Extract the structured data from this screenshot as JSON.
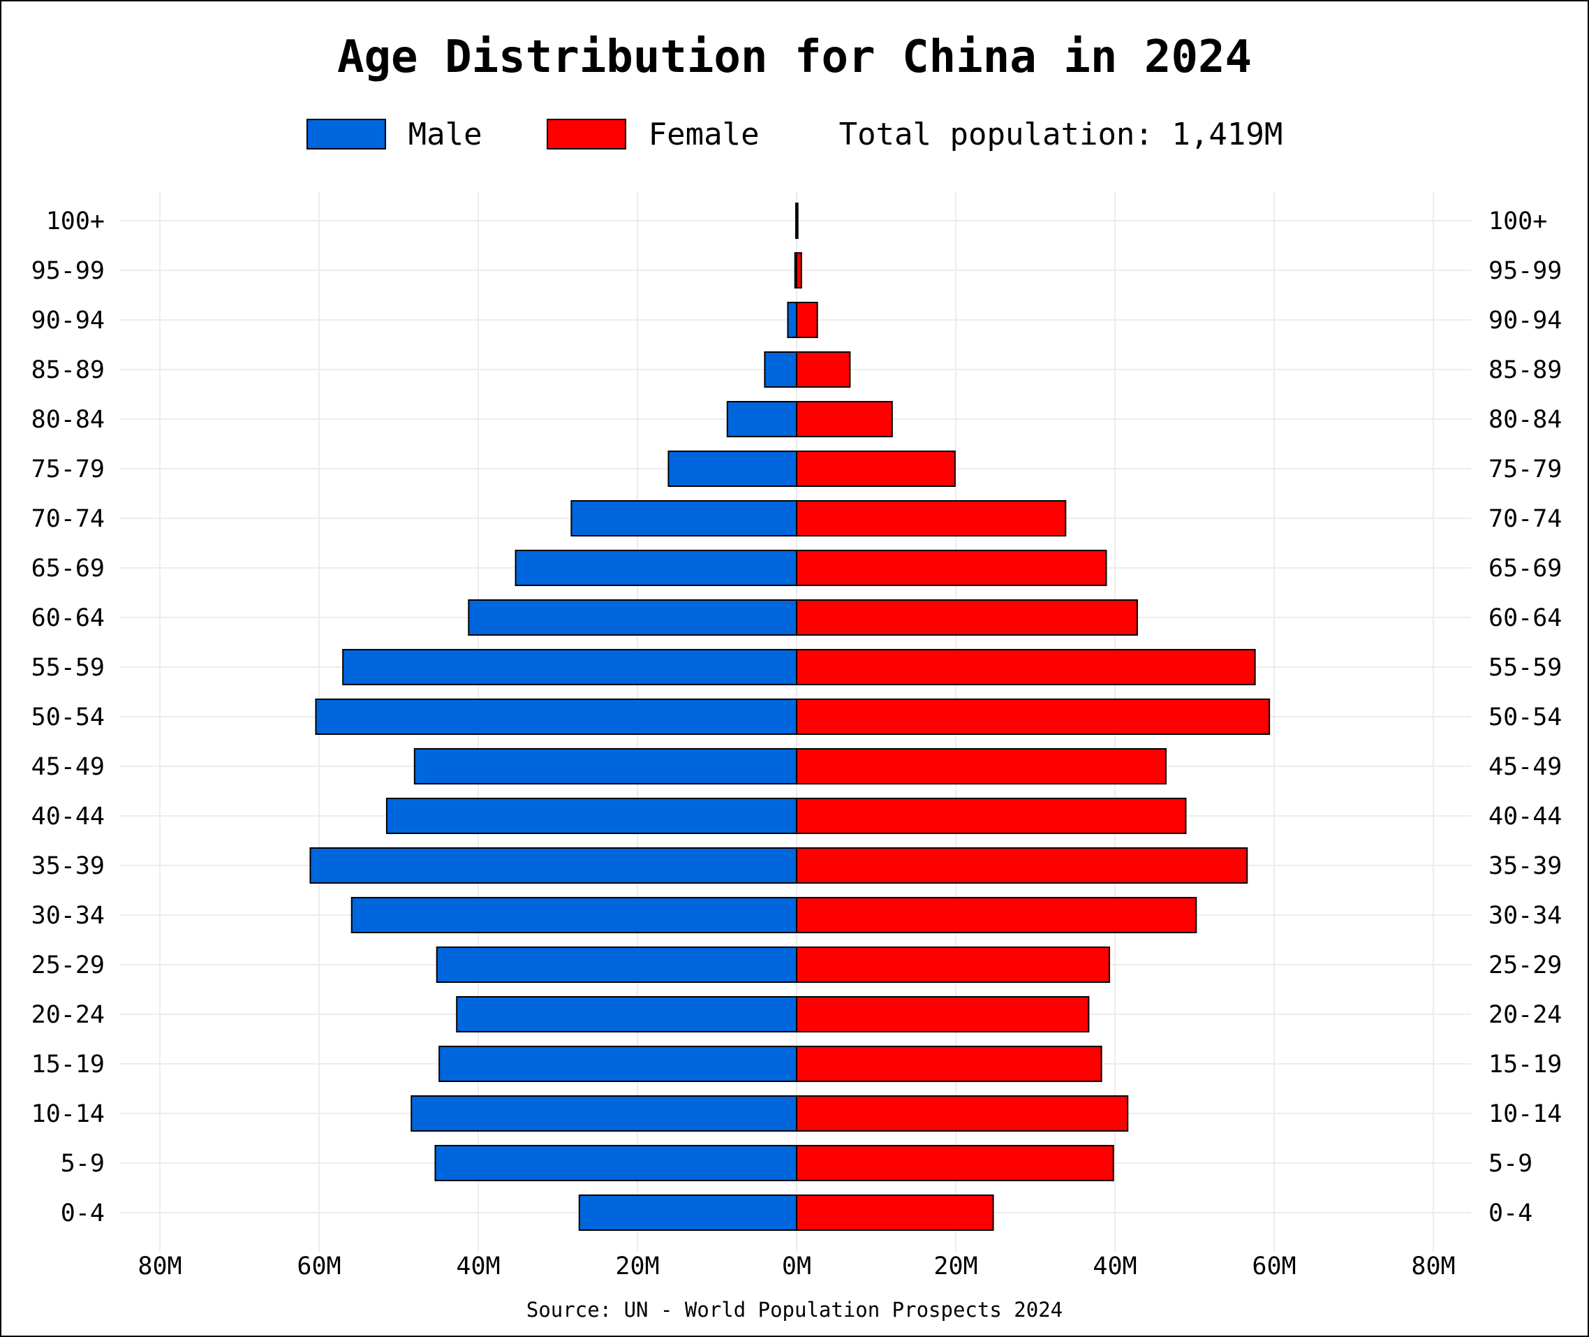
{
  "chart_data": {
    "type": "bar",
    "orientation": "horizontal-pyramid",
    "title": "Age Distribution for China in 2024",
    "legend": {
      "male_label": "Male",
      "female_label": "Female",
      "total_text": "Total population: 1,419M",
      "placement": "top-center"
    },
    "source": "Source: UN - World Population Prospects 2024",
    "categories": [
      "100+",
      "95-99",
      "90-94",
      "85-89",
      "80-84",
      "75-79",
      "70-74",
      "65-69",
      "60-64",
      "55-59",
      "50-54",
      "45-49",
      "40-44",
      "35-39",
      "30-34",
      "25-29",
      "20-24",
      "15-19",
      "10-14",
      "5-9",
      "0-4"
    ],
    "series": [
      {
        "name": "Male",
        "color": "#0066dd",
        "values": [
          0.05,
          0.2,
          1.1,
          4.0,
          8.7,
          16.1,
          28.3,
          35.3,
          41.2,
          57.0,
          60.4,
          48.0,
          51.5,
          61.1,
          55.9,
          45.2,
          42.7,
          44.9,
          48.4,
          45.4,
          27.3
        ]
      },
      {
        "name": "Female",
        "color": "#ff0000",
        "values": [
          0.15,
          0.6,
          2.6,
          6.7,
          12.0,
          19.9,
          33.8,
          38.9,
          42.8,
          57.6,
          59.4,
          46.4,
          48.9,
          56.6,
          50.2,
          39.3,
          36.7,
          38.3,
          41.6,
          39.8,
          24.7
        ]
      }
    ],
    "xticks": [
      "80M",
      "60M",
      "40M",
      "20M",
      "0M",
      "20M",
      "40M",
      "60M",
      "80M"
    ],
    "xlim": [
      -80,
      80
    ],
    "unit": "millions",
    "grid": true
  }
}
